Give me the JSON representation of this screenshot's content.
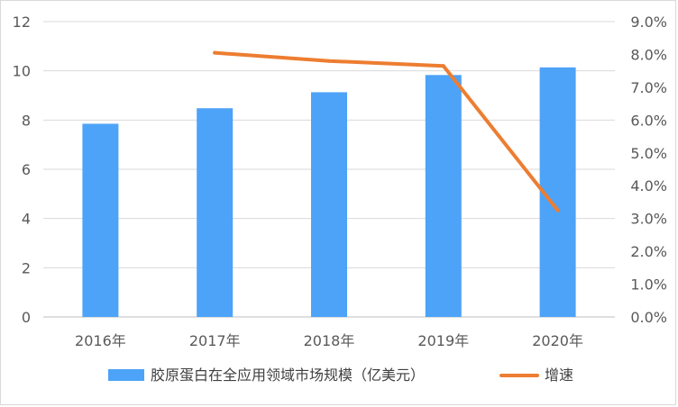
{
  "chart_data": {
    "type": "bar",
    "categories": [
      "2016年",
      "2017年",
      "2018年",
      "2019年",
      "2020年"
    ],
    "series": [
      {
        "name": "胶原蛋白在全应用领域市场规模（亿美元）",
        "type": "bar",
        "axis": "left",
        "color": "#4da3f7",
        "values": [
          7.85,
          8.48,
          9.13,
          9.83,
          10.14
        ]
      },
      {
        "name": "增速",
        "type": "line",
        "axis": "right",
        "color": "#ed7d31",
        "values": [
          null,
          8.05,
          7.8,
          7.65,
          3.25
        ]
      }
    ],
    "y_left": {
      "min": 0,
      "max": 12,
      "step": 2,
      "tick_labels": [
        "0",
        "2",
        "4",
        "6",
        "8",
        "10",
        "12"
      ]
    },
    "y_right": {
      "min": 0,
      "max": 9,
      "step": 1,
      "unit": "%",
      "tick_labels": [
        "0.0%",
        "1.0%",
        "2.0%",
        "3.0%",
        "4.0%",
        "5.0%",
        "6.0%",
        "7.0%",
        "8.0%",
        "9.0%"
      ]
    },
    "grid": true,
    "legend": "bottom",
    "title": "",
    "xlabel": "",
    "ylabel": ""
  }
}
